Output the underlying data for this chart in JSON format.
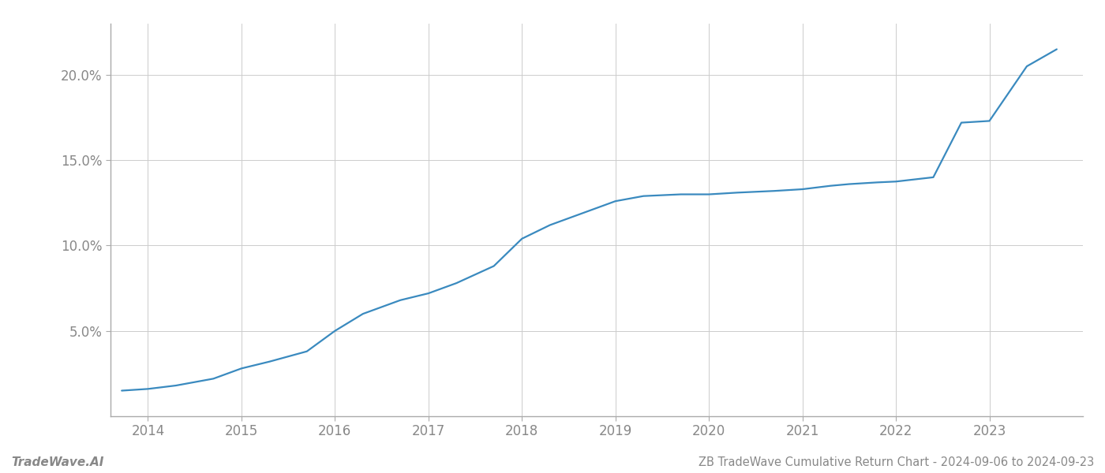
{
  "title": "ZB TradeWave Cumulative Return Chart - 2024-09-06 to 2024-09-23",
  "watermark": "TradeWave.AI",
  "line_color": "#3a8abf",
  "background_color": "#ffffff",
  "grid_color": "#cccccc",
  "x_values": [
    2013.72,
    2014.0,
    2014.3,
    2014.7,
    2015.0,
    2015.3,
    2015.7,
    2016.0,
    2016.3,
    2016.7,
    2017.0,
    2017.3,
    2017.7,
    2018.0,
    2018.3,
    2018.6,
    2019.0,
    2019.3,
    2019.7,
    2020.0,
    2020.3,
    2020.7,
    2021.0,
    2021.3,
    2021.5,
    2021.8,
    2022.0,
    2022.4,
    2022.7,
    2023.0,
    2023.4,
    2023.72
  ],
  "y_values": [
    1.5,
    1.6,
    1.8,
    2.2,
    2.8,
    3.2,
    3.8,
    5.0,
    6.0,
    6.8,
    7.2,
    7.8,
    8.8,
    10.4,
    11.2,
    11.8,
    12.6,
    12.9,
    13.0,
    13.0,
    13.1,
    13.2,
    13.3,
    13.5,
    13.6,
    13.7,
    13.75,
    14.0,
    17.2,
    17.3,
    20.5,
    21.5
  ],
  "xlim": [
    2013.6,
    2024.0
  ],
  "ylim": [
    0,
    23
  ],
  "yticks": [
    5.0,
    10.0,
    15.0,
    20.0
  ],
  "ytick_labels": [
    "5.0%",
    "10.0%",
    "15.0%",
    "20.0%"
  ],
  "xticks": [
    2014,
    2015,
    2016,
    2017,
    2018,
    2019,
    2020,
    2021,
    2022,
    2023
  ],
  "line_width": 1.6,
  "figsize": [
    14.0,
    6.0
  ],
  "dpi": 100,
  "tick_color": "#888888",
  "spine_color": "#aaaaaa",
  "title_fontsize": 10.5,
  "watermark_fontsize": 11,
  "tick_fontsize": 12
}
